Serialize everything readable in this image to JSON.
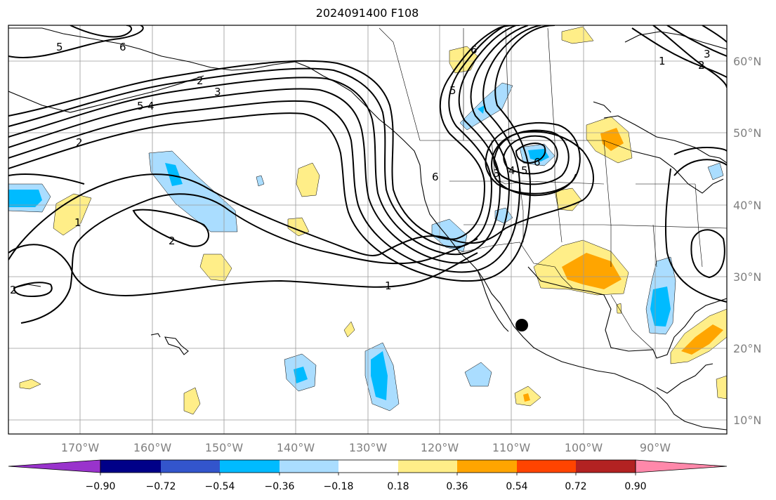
{
  "title": "2024091400 F108",
  "map": {
    "lon_labels": [
      "170°W",
      "160°W",
      "150°W",
      "140°W",
      "130°W",
      "120°W",
      "110°W",
      "100°W",
      "90°W"
    ],
    "lat_labels": [
      "60°N",
      "50°N",
      "40°N",
      "30°N",
      "20°N",
      "10°N"
    ],
    "contour_labels": [
      "5",
      "6",
      "5",
      "4",
      "3",
      "2",
      "1",
      "2",
      "1",
      "2",
      "6",
      "5",
      "6",
      "3",
      "4",
      "5",
      "6",
      "1",
      "2",
      "3",
      "2"
    ],
    "marker": {
      "name": "location-marker",
      "lon": -108.5,
      "lat": 23.3
    }
  },
  "colorbar": {
    "ticks": [
      "−0.90",
      "−0.72",
      "−0.54",
      "−0.36",
      "−0.18",
      "0.18",
      "0.36",
      "0.54",
      "0.72",
      "0.90"
    ],
    "colors": [
      "#9933cc",
      "#000088",
      "#3355cc",
      "#00bbff",
      "#aaddff",
      "#ffffff",
      "#ffee88",
      "#ffa500",
      "#ff4400",
      "#b22222",
      "#ff88aa"
    ]
  }
}
